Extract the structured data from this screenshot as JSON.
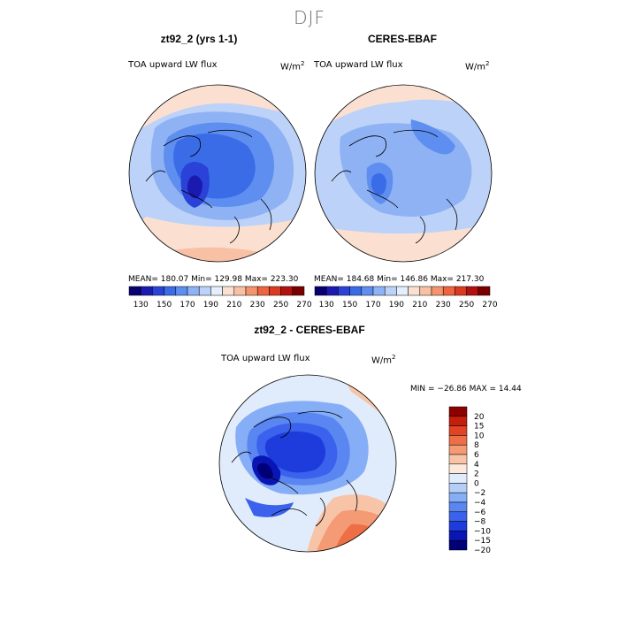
{
  "title": "DJF",
  "panels": [
    {
      "title": "zt92_2 (yrs 1-1)",
      "variable": "TOA upward LW flux",
      "unit_base": "W/m",
      "unit_exp": "2",
      "stats": "MEAN= 180.07   Min= 129.98   Max= 223.30"
    },
    {
      "title": "CERES-EBAF",
      "variable": "TOA upward LW flux",
      "unit_base": "W/m",
      "unit_exp": "2",
      "stats": "MEAN= 184.68   Min= 146.86   Max= 217.30"
    },
    {
      "title": "zt92_2 - CERES-EBAF",
      "variable": "TOA upward LW flux",
      "unit_base": "W/m",
      "unit_exp": "2",
      "stats": "MIN = −26.86 MAX =  14.44"
    }
  ],
  "abs_colorbar": {
    "colors": [
      "#080070",
      "#1a1ab0",
      "#2a42d8",
      "#3a6ce8",
      "#5e8ef0",
      "#8eb2f4",
      "#bcd2f8",
      "#e4eefc",
      "#fbe0d2",
      "#f8c0a4",
      "#f4946e",
      "#ee6440",
      "#dc3a20",
      "#b41010",
      "#7a0000"
    ],
    "tick_labels": [
      "130",
      "150",
      "170",
      "190",
      "210",
      "230",
      "250",
      "270"
    ]
  },
  "diff_colorbar": {
    "colors": [
      "#000078",
      "#0a16b4",
      "#1e3cdc",
      "#3a62ec",
      "#5a86f2",
      "#86aef6",
      "#b4cef8",
      "#e0ecfc",
      "#fde8dc",
      "#f8c4a8",
      "#f49a74",
      "#ee6e46",
      "#e04422",
      "#c41e0c",
      "#8c0000"
    ],
    "tick_labels": [
      "20",
      "15",
      "10",
      "8",
      "6",
      "4",
      "2",
      "0",
      "−2",
      "−4",
      "−6",
      "−8",
      "−10",
      "−15",
      "−20"
    ]
  }
}
